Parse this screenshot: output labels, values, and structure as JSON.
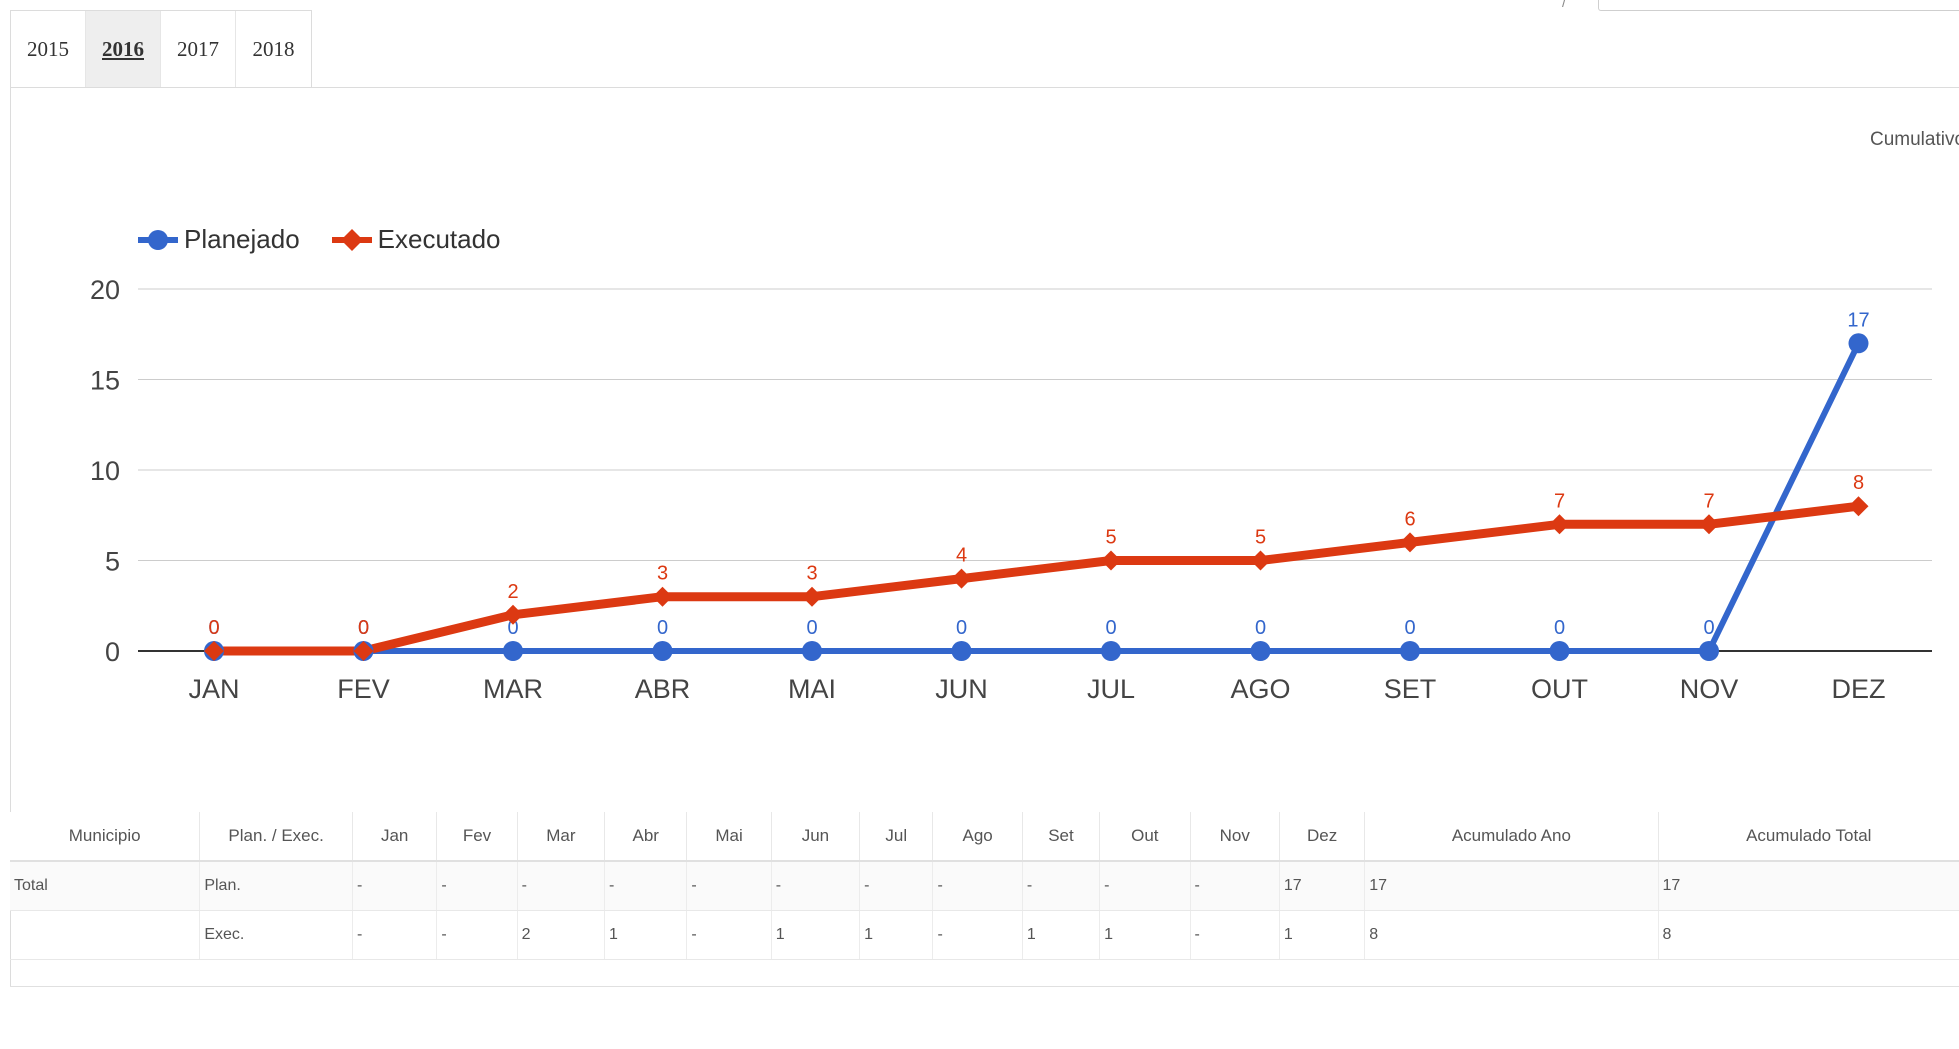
{
  "tabs": [
    {
      "label": "2015",
      "active": false
    },
    {
      "label": "2016",
      "active": true
    },
    {
      "label": "2017",
      "active": false
    },
    {
      "label": "2018",
      "active": false
    }
  ],
  "top_input_prefix": "/",
  "toggle_label": "Cumulativo",
  "colors": {
    "planejado": "#3366cc",
    "executado": "#dc3912",
    "grid": "#cccccc",
    "axis": "#333333"
  },
  "chart_data": {
    "type": "line",
    "categories": [
      "JAN",
      "FEV",
      "MAR",
      "ABR",
      "MAI",
      "JUN",
      "JUL",
      "AGO",
      "SET",
      "OUT",
      "NOV",
      "DEZ"
    ],
    "series": [
      {
        "name": "Planejado",
        "marker": "circle",
        "values": [
          0,
          0,
          0,
          0,
          0,
          0,
          0,
          0,
          0,
          0,
          0,
          17
        ]
      },
      {
        "name": "Executado",
        "marker": "diamond",
        "values": [
          0,
          0,
          2,
          3,
          3,
          4,
          5,
          5,
          6,
          7,
          7,
          8
        ]
      }
    ],
    "ylim": [
      0,
      20
    ],
    "yticks": [
      0,
      5,
      10,
      15,
      20
    ],
    "grid": true,
    "legend": "top-left",
    "data_labels": true
  },
  "table": {
    "headers": [
      "Municipio",
      "Plan. / Exec.",
      "Jan",
      "Fev",
      "Mar",
      "Abr",
      "Mai",
      "Jun",
      "Jul",
      "Ago",
      "Set",
      "Out",
      "Nov",
      "Dez",
      "Acumulado Ano",
      "Acumulado Total"
    ],
    "rows": [
      [
        "Total",
        "Plan.",
        "-",
        "-",
        "-",
        "-",
        "-",
        "-",
        "-",
        "-",
        "-",
        "-",
        "-",
        "17",
        "17",
        "17"
      ],
      [
        "",
        "Exec.",
        "-",
        "-",
        "2",
        "1",
        "-",
        "1",
        "1",
        "-",
        "1",
        "1",
        "-",
        "1",
        "8",
        "8"
      ]
    ]
  }
}
